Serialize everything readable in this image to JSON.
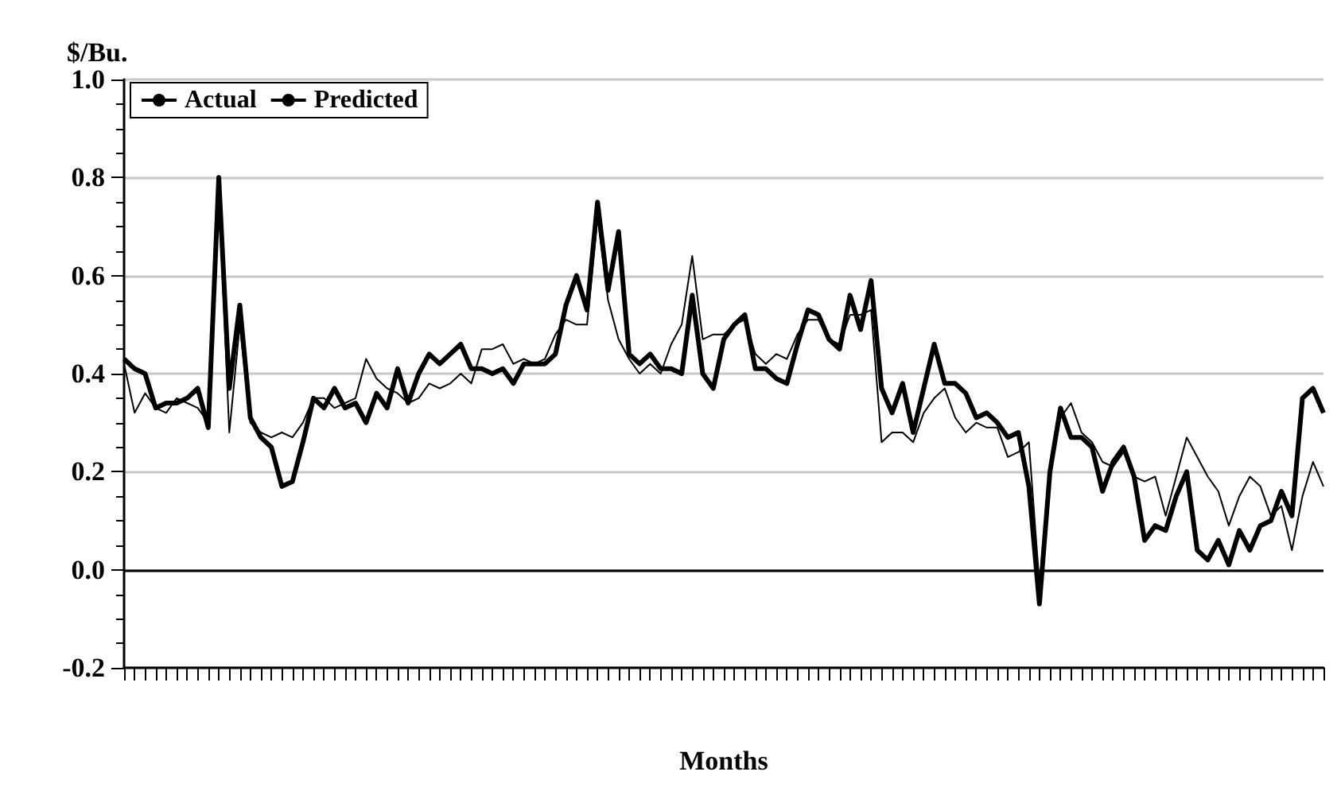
{
  "chart_data": {
    "type": "line",
    "ylabel": "$/Bu.",
    "xlabel": "Months",
    "categories": [
      null,
      null,
      null,
      null,
      null,
      null,
      null,
      null,
      null,
      null,
      null,
      null,
      null,
      null,
      null,
      null,
      null,
      null,
      null,
      null,
      null,
      null,
      null,
      null,
      null,
      null,
      null,
      null,
      null,
      null,
      null,
      null,
      null,
      null,
      null,
      null,
      null,
      null,
      null,
      null,
      null,
      null,
      null,
      null,
      null,
      null,
      null,
      null,
      null,
      null,
      null,
      null,
      null,
      null,
      null,
      null,
      null,
      null,
      null,
      null,
      null,
      null,
      null,
      null,
      null,
      null,
      null,
      null,
      null,
      null,
      null,
      null,
      null,
      null,
      null,
      null,
      null,
      null,
      null,
      null,
      null,
      null,
      null,
      null,
      null,
      null,
      null,
      null,
      null,
      null,
      null,
      null,
      null,
      null,
      null,
      null,
      null,
      null,
      null,
      null,
      null,
      null,
      null,
      null,
      null,
      null,
      null,
      null,
      null,
      null,
      null,
      null,
      null,
      null,
      null
    ],
    "series": [
      {
        "name": "Actual",
        "color": "#000000",
        "values": [
          0.43,
          0.41,
          0.4,
          0.33,
          0.34,
          0.34,
          0.35,
          0.37,
          0.29,
          0.8,
          0.37,
          0.54,
          0.31,
          0.27,
          0.25,
          0.17,
          0.18,
          0.26,
          0.35,
          0.33,
          0.37,
          0.33,
          0.34,
          0.3,
          0.36,
          0.33,
          0.41,
          0.34,
          0.4,
          0.44,
          0.42,
          0.44,
          0.46,
          0.41,
          0.41,
          0.4,
          0.41,
          0.38,
          0.42,
          0.42,
          0.42,
          0.44,
          0.54,
          0.6,
          0.53,
          0.75,
          0.57,
          0.69,
          0.44,
          0.42,
          0.44,
          0.41,
          0.41,
          0.4,
          0.56,
          0.4,
          0.37,
          0.47,
          0.5,
          0.52,
          0.41,
          0.41,
          0.39,
          0.38,
          0.46,
          0.53,
          0.52,
          0.47,
          0.45,
          0.56,
          0.49,
          0.59,
          0.37,
          0.32,
          0.38,
          0.28,
          0.37,
          0.46,
          0.38,
          0.38,
          0.36,
          0.31,
          0.32,
          0.3,
          0.27,
          0.28,
          0.17,
          -0.07,
          0.2,
          0.33,
          0.27,
          0.27,
          0.25,
          0.16,
          0.22,
          0.25,
          0.19,
          0.06,
          0.09,
          0.08,
          0.15,
          0.2,
          0.04,
          0.02,
          0.06,
          0.01,
          0.08,
          0.04,
          0.09,
          0.1,
          0.16,
          0.11,
          0.35,
          0.37,
          0.32
        ]
      },
      {
        "name": "Predicted",
        "color": "#000000",
        "values": [
          0.42,
          0.32,
          0.36,
          0.33,
          0.32,
          0.35,
          0.34,
          0.33,
          0.3,
          0.78,
          0.28,
          0.5,
          0.3,
          0.28,
          0.27,
          0.28,
          0.27,
          0.3,
          0.35,
          0.35,
          0.33,
          0.34,
          0.35,
          0.43,
          0.39,
          0.37,
          0.36,
          0.34,
          0.35,
          0.38,
          0.37,
          0.38,
          0.4,
          0.38,
          0.45,
          0.45,
          0.46,
          0.42,
          0.43,
          0.42,
          0.43,
          0.48,
          0.51,
          0.5,
          0.5,
          0.72,
          0.55,
          0.47,
          0.43,
          0.4,
          0.42,
          0.4,
          0.46,
          0.5,
          0.64,
          0.47,
          0.48,
          0.48,
          0.5,
          0.51,
          0.44,
          0.42,
          0.44,
          0.43,
          0.48,
          0.51,
          0.51,
          0.47,
          0.46,
          0.52,
          0.52,
          0.53,
          0.26,
          0.28,
          0.28,
          0.26,
          0.32,
          0.35,
          0.37,
          0.31,
          0.28,
          0.3,
          0.29,
          0.29,
          0.23,
          0.24,
          0.26,
          -0.03,
          0.2,
          0.31,
          0.34,
          0.28,
          0.26,
          0.22,
          0.21,
          0.24,
          0.19,
          0.18,
          0.19,
          0.11,
          0.19,
          0.27,
          0.23,
          0.19,
          0.16,
          0.09,
          0.15,
          0.19,
          0.17,
          0.11,
          0.13,
          0.04,
          0.15,
          0.22,
          0.17
        ]
      }
    ],
    "ylim": [
      -0.2,
      1.0
    ],
    "yticks": [
      {
        "value": -0.2,
        "label": "-0.2"
      },
      {
        "value": 0,
        "label": "0.0"
      },
      {
        "value": 0.2,
        "label": "0.2"
      },
      {
        "value": 0.4,
        "label": "0.4"
      },
      {
        "value": 0.6,
        "label": "0.6"
      },
      {
        "value": 0.8,
        "label": "0.8"
      },
      {
        "value": 1.0,
        "label": "1.0"
      }
    ],
    "grid": "y",
    "legend": "top left",
    "marker": "none",
    "line_style": "solid",
    "ref_lines": [
      {
        "axis": "y",
        "value": 0,
        "color": "#000000"
      }
    ]
  }
}
